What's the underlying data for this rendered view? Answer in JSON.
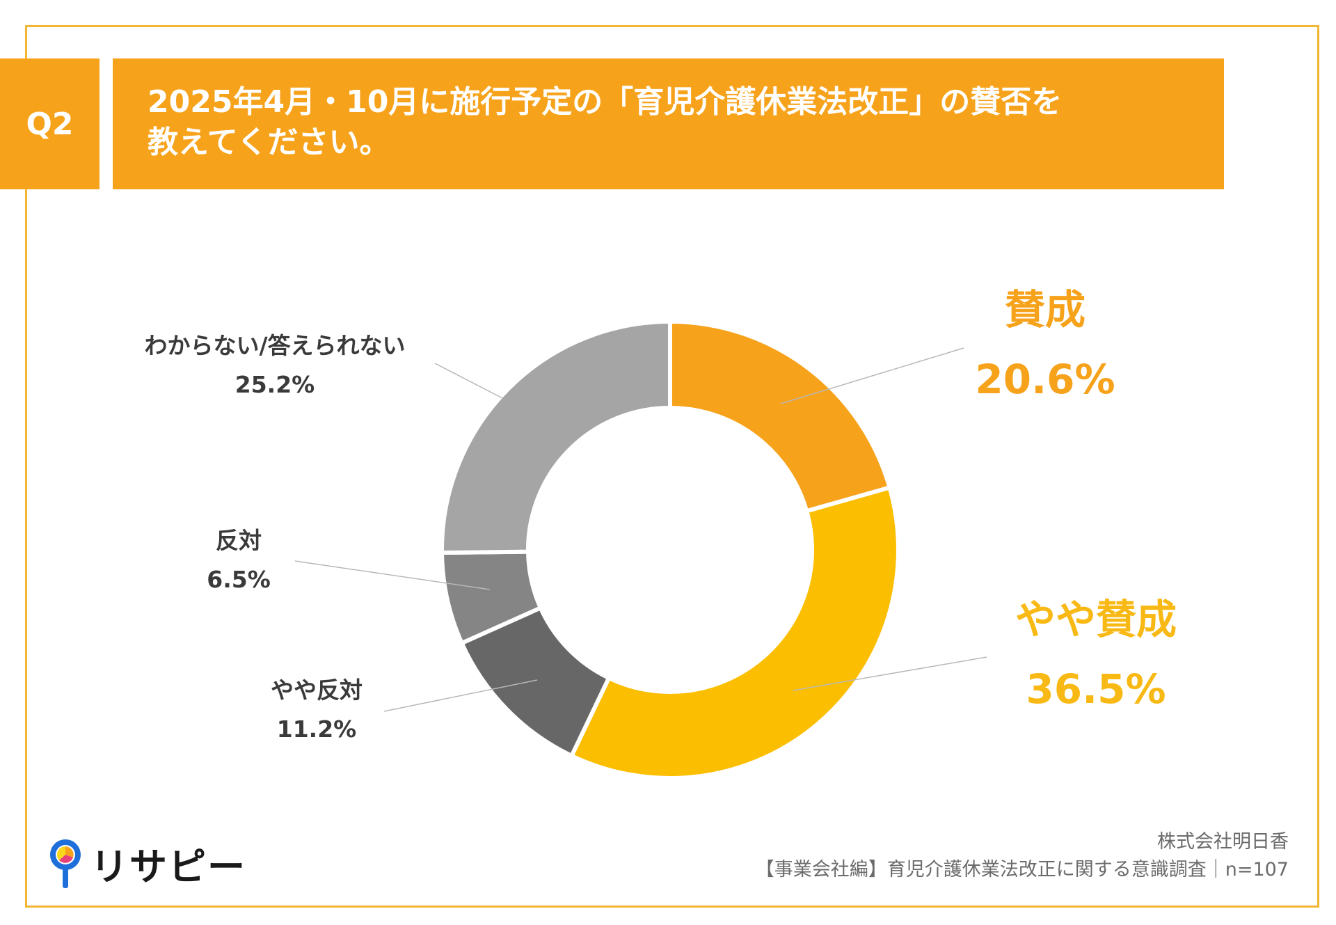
{
  "header": {
    "question_badge": "Q2",
    "title_line1": "2025年4月・10月に施行予定の「育児介護休業法改正」の賛否を",
    "title_line2": "教えてください。"
  },
  "chart_data": {
    "type": "pie",
    "donut": true,
    "categories": [
      "賛成",
      "やや賛成",
      "やや反対",
      "反対",
      "わからない/答えられない"
    ],
    "values": [
      20.6,
      36.5,
      11.2,
      6.5,
      25.2
    ],
    "value_labels": [
      "20.6%",
      "36.5%",
      "11.2%",
      "6.5%",
      "25.2%"
    ],
    "colors": [
      "#F7A21B",
      "#FBBE00",
      "#676767",
      "#858585",
      "#A5A5A5"
    ],
    "start_angle_deg": 0,
    "direction": "clockwise",
    "legend": "none"
  },
  "logo": {
    "text": "リサピー"
  },
  "footer": {
    "company": "株式会社明日香",
    "survey": "【事業会社編】育児介護休業法改正に関する意識調査｜n=107"
  }
}
